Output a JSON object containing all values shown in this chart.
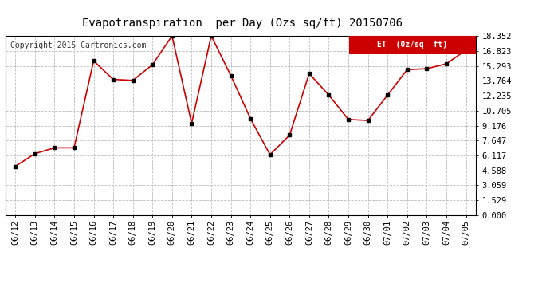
{
  "title": "Evapotranspiration  per Day (Ozs sq/ft) 20150706",
  "copyright": "Copyright 2015 Cartronics.com",
  "legend_label": "ET  (0z/sq  ft)",
  "dates": [
    "06/12",
    "06/13",
    "06/14",
    "06/15",
    "06/16",
    "06/17",
    "06/18",
    "06/19",
    "06/20",
    "06/21",
    "06/22",
    "06/23",
    "06/24",
    "06/25",
    "06/26",
    "06/27",
    "06/28",
    "06/29",
    "06/30",
    "07/01",
    "07/02",
    "07/03",
    "07/04",
    "07/05"
  ],
  "values": [
    5.0,
    6.3,
    6.9,
    6.9,
    15.8,
    13.9,
    13.8,
    15.4,
    18.35,
    9.4,
    18.35,
    14.3,
    9.9,
    6.2,
    8.2,
    14.5,
    12.3,
    9.8,
    9.7,
    12.3,
    14.9,
    15.0,
    15.5,
    16.9
  ],
  "line_color": "#cc0000",
  "marker_color": "#000000",
  "bg_color": "#ffffff",
  "grid_color": "#bbbbbb",
  "yticks": [
    0.0,
    1.529,
    3.059,
    4.588,
    6.117,
    7.647,
    9.176,
    10.705,
    12.235,
    13.764,
    15.293,
    16.823,
    18.352
  ],
  "ymin": 0.0,
  "ymax": 18.352,
  "legend_bg": "#cc0000",
  "legend_text_color": "#ffffff",
  "title_fontsize": 10,
  "tick_fontsize": 7.5,
  "copyright_fontsize": 7
}
